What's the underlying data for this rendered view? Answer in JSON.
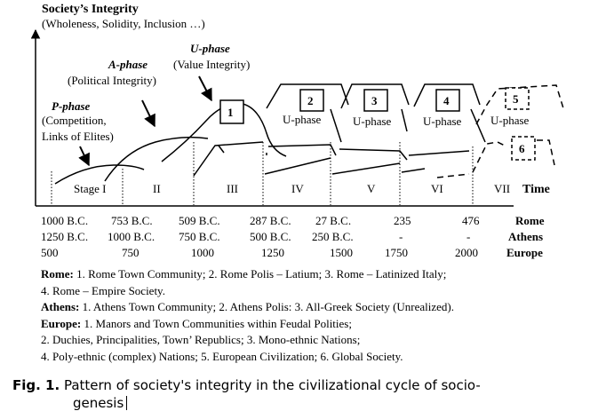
{
  "axis": {
    "title": "Society’s Integrity",
    "subtitle": "(Wholeness, Solidity, Inclusion …)",
    "time_label": "Time"
  },
  "phases": {
    "p": {
      "name": "P-phase",
      "desc1": "(Competition,",
      "desc2": "Links of Elites)"
    },
    "a": {
      "name": "A-phase",
      "desc": "(Political Integrity)"
    },
    "u": {
      "name": "U-phase",
      "desc": "(Value Integrity)"
    }
  },
  "stages": [
    "Stage I",
    "II",
    "III",
    "IV",
    "V",
    "VI",
    "VII"
  ],
  "boxes": [
    "1",
    "2",
    "3",
    "4",
    "5",
    "6"
  ],
  "u_phase_label": "U-phase",
  "timeline": {
    "rows": [
      {
        "name": "Rome",
        "values": [
          "1000 B.C.",
          "753 B.C.",
          "509 B.C.",
          "287 B.C.",
          "27 B.C.",
          "235",
          "476"
        ]
      },
      {
        "name": "Athens",
        "values": [
          "1250 B.C.",
          "1000 B.C.",
          "750 B.C.",
          "500 B.C.",
          "250 B.C.",
          "-",
          "-"
        ]
      },
      {
        "name": "Europe",
        "values": [
          "500",
          "750",
          "1000",
          "1250",
          "1500",
          "1750",
          "2000"
        ]
      }
    ]
  },
  "legend": {
    "rome_key": "Rome:",
    "rome_1": " 1. Rome Town Community; 2. Rome Polis – Latium; 3. Rome – Latinized Italy;",
    "rome_2": "4. Rome – Empire Society.",
    "athens_key": "Athens:",
    "athens_1": " 1. Athens Town Community; 2. Athens Polis: 3. All-Greek Society (Unrealized).",
    "europe_key": "Europe:",
    "europe_1": " 1. Manors and Town Communities within Feudal Polities;",
    "europe_2": "2. Duchies, Principalities, Town’ Republics; 3. Mono-ethnic Nations;",
    "europe_3": "4. Poly-ethnic (complex) Nations; 5. European Civilization; 6. Global Society."
  },
  "caption": {
    "label": "Fig. 1.",
    "text1": " Pattern of society's integrity in the civilizational cycle of socio-",
    "text2": "genesis"
  }
}
